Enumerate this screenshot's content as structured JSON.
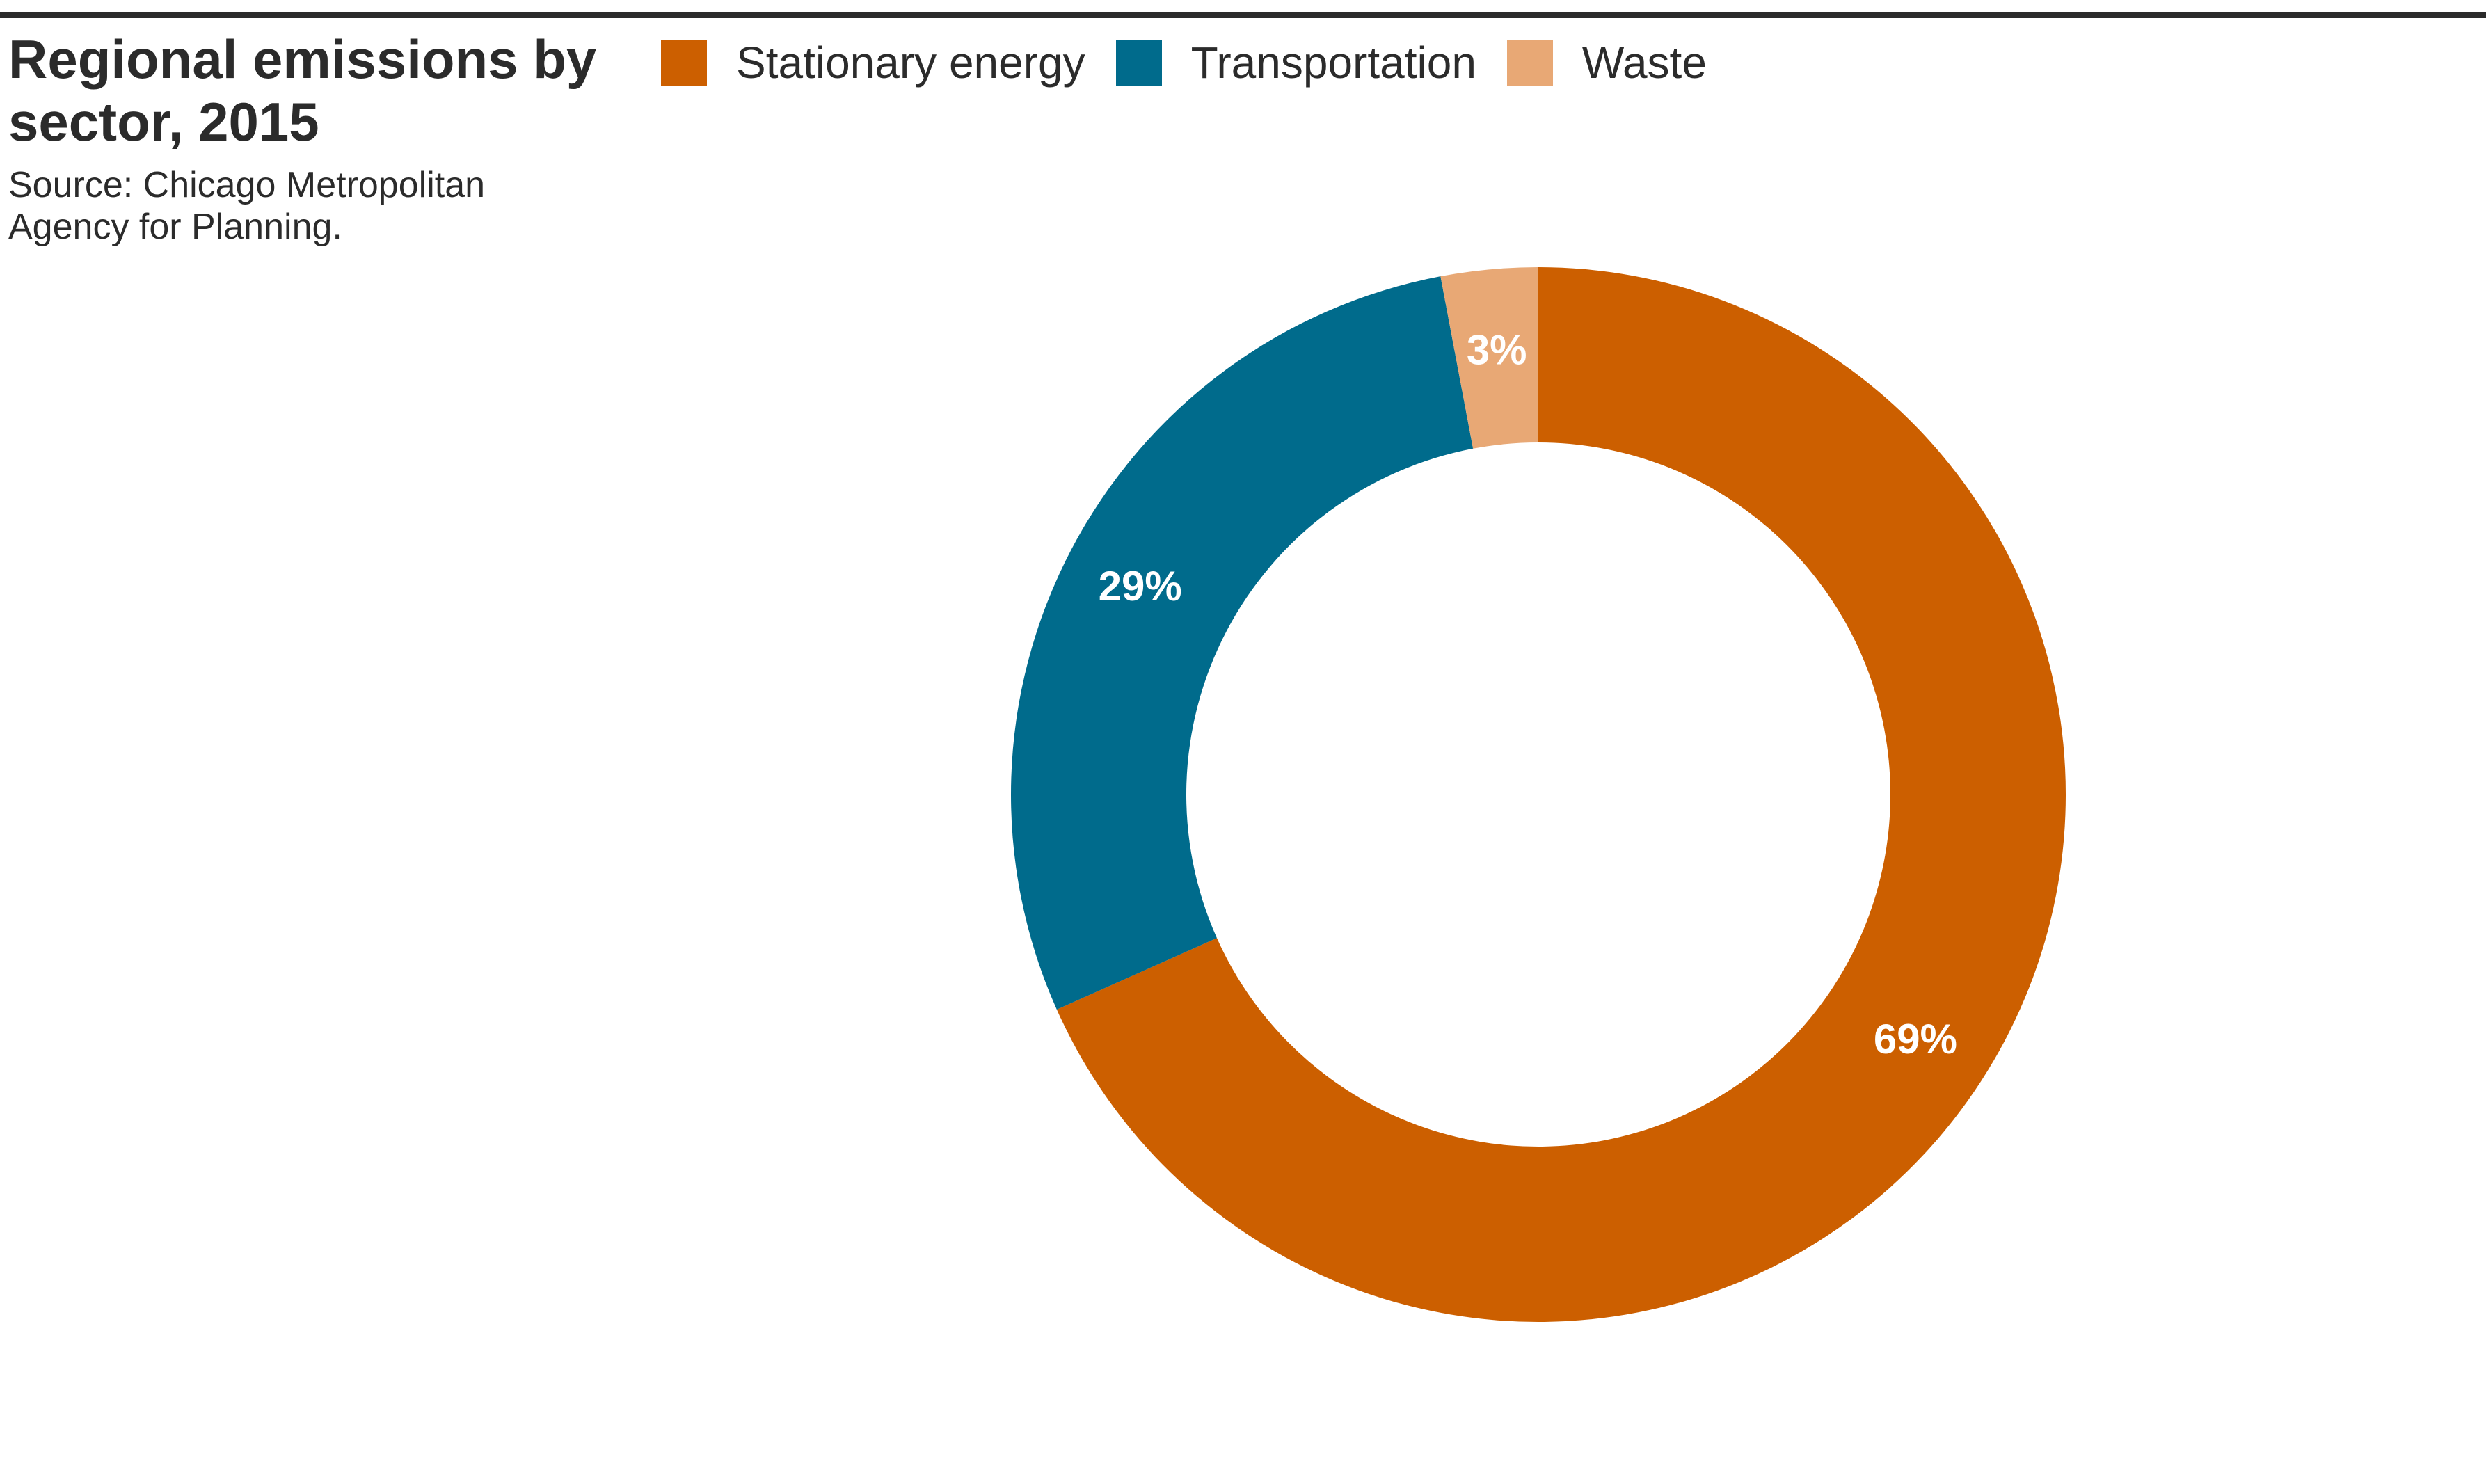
{
  "chart_data": {
    "type": "pie",
    "donut": true,
    "title": "Regional emissions by sector, 2015",
    "source": "Source: Chicago Metropolitan Agency for Planning.",
    "legend_position": "top",
    "categories": [
      "Stationary energy",
      "Transportation",
      "Waste"
    ],
    "values": [
      69,
      29,
      3
    ],
    "labels": [
      "69%",
      "29%",
      "3%"
    ],
    "colors": [
      "#cc5f00",
      "#006b8c",
      "#e8a875"
    ],
    "start_angle_deg": 0,
    "direction": "clockwise"
  },
  "legend": {
    "items": [
      {
        "label": "Stationary energy",
        "color": "#cc5f00"
      },
      {
        "label": "Transportation",
        "color": "#006b8c"
      },
      {
        "label": "Waste",
        "color": "#e8a875"
      }
    ]
  }
}
